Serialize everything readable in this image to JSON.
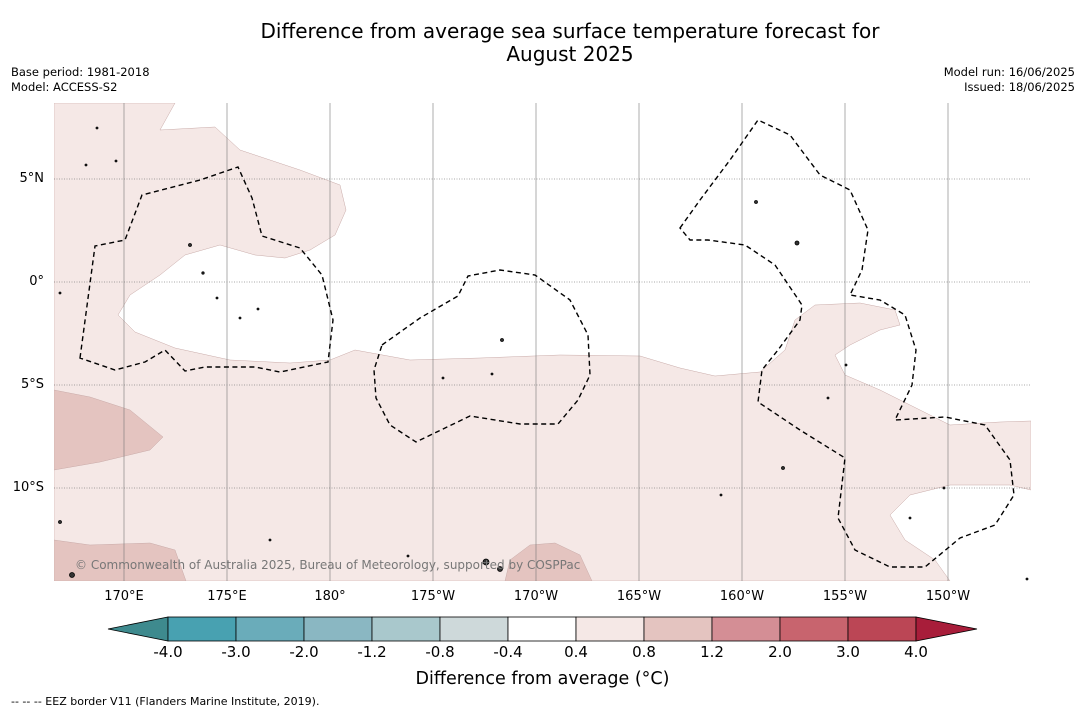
{
  "title_line1": "Difference from average sea surface temperature forecast for",
  "title_line2": "August 2025",
  "meta_left": {
    "base_period": "Base period: 1981-2018",
    "model": "Model: ACCESS-S2"
  },
  "meta_right": {
    "model_run": "Model run: 16/06/2025",
    "issued": "Issued: 18/06/2025"
  },
  "lat_labels": [
    "5°N",
    "0°",
    "5°S",
    "10°S"
  ],
  "lon_labels": [
    "170°E",
    "175°E",
    "180°",
    "175°W",
    "170°W",
    "165°W",
    "160°W",
    "155°W",
    "150°W"
  ],
  "copyright": "© Commonwealth of Australia 2025, Bureau of Meteorology, supported by COSPPac",
  "colorbar": {
    "title": "Difference from average (°C)",
    "ticks": [
      "-4.0",
      "-3.0",
      "-2.0",
      "-1.2",
      "-0.8",
      "-0.4",
      "0.4",
      "0.8",
      "1.2",
      "2.0",
      "3.0",
      "4.0"
    ],
    "colors": [
      "#3e8a8e",
      "#48a1b1",
      "#6aacba",
      "#8ab7c2",
      "#a9c8cc",
      "#ced9da",
      "#ffffff",
      "#f5e8e6",
      "#e4c4c0",
      "#d48e95",
      "#c8646e",
      "#bb4655",
      "#a81d3a"
    ]
  },
  "legend_footnote": "--  --  -- EEZ border V11 (Flanders Marine Institute, 2019).",
  "map_fill_colors": {
    "weak_warm": "#f5e8e6",
    "moderate_warm": "#e4c4c0",
    "neutral": "#ffffff"
  }
}
